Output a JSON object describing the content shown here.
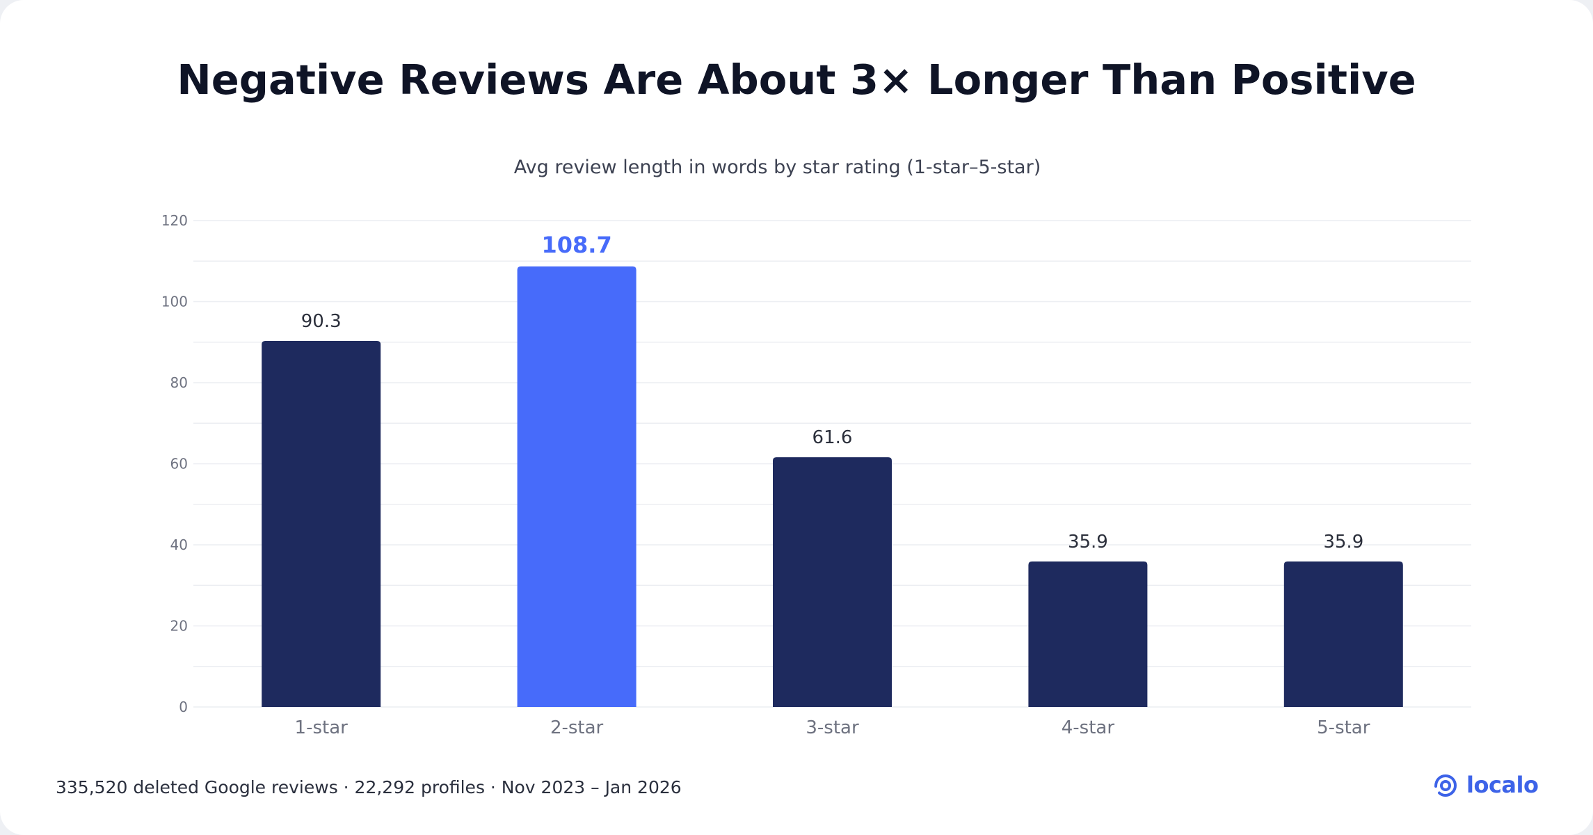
{
  "header": {
    "title": "Negative Reviews Are About 3× Longer Than Positive",
    "subtitle": "Avg review length in words by star rating (1-star–5-star)"
  },
  "footer": {
    "note": "335,520 deleted Google reviews · 22,292 profiles · Nov 2023 – Jan 2026",
    "brand": "localo",
    "brand_icon": "location-pin-icon"
  },
  "colors": {
    "bar": "#1e2a5e",
    "highlight": "#476bfa",
    "grid": "#eceef2",
    "tick": "#6e7280",
    "label": "#2b2f3b"
  },
  "chart_data": {
    "type": "bar",
    "title": "Negative Reviews Are About 3× Longer Than Positive",
    "subtitle": "Avg review length in words by star rating (1-star–5-star)",
    "categories": [
      "1-star",
      "2-star",
      "3-star",
      "4-star",
      "5-star"
    ],
    "values": [
      90.3,
      108.7,
      61.6,
      35.9,
      35.9
    ],
    "value_labels": [
      "90.3",
      "108.7",
      "61.6",
      "35.9",
      "35.9"
    ],
    "highlight_index": 1,
    "ylim": [
      0,
      120
    ],
    "yticks": [
      0,
      20,
      40,
      60,
      80,
      100,
      120
    ],
    "grid": true,
    "legend": "none",
    "xlabel": "",
    "ylabel": ""
  }
}
